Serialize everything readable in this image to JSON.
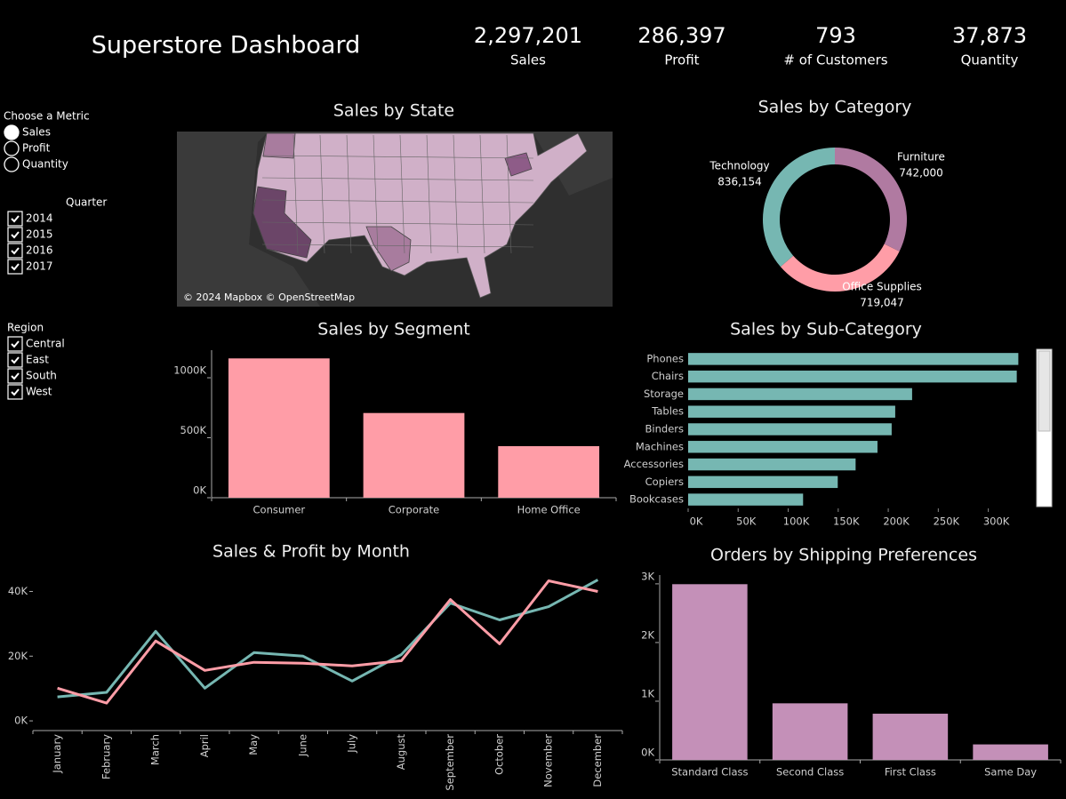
{
  "header": {
    "title": "Superstore Dashboard",
    "kpis": [
      {
        "value": "2,297,201",
        "label": "Sales"
      },
      {
        "value": "286,397",
        "label": "Profit"
      },
      {
        "value": "793",
        "label": "# of Customers"
      },
      {
        "value": "37,873",
        "label": "Quantity"
      }
    ]
  },
  "filters": {
    "metric": {
      "title": "Choose a Metric",
      "options": [
        "Sales",
        "Profit",
        "Quantity"
      ],
      "selected": "Sales"
    },
    "quarter": {
      "title": "Quarter",
      "options": [
        "2014",
        "2015",
        "2016",
        "2017"
      ]
    },
    "region": {
      "title": "Region",
      "options": [
        "Central",
        "East",
        "South",
        "West"
      ]
    }
  },
  "chart_data": [
    {
      "type": "map",
      "title": "Sales by State",
      "attribution": "© 2024 Mapbox © OpenStreetMap"
    },
    {
      "type": "pie",
      "title": "Sales by Category",
      "categories": [
        "Furniture",
        "Office Supplies",
        "Technology"
      ],
      "values": [
        742000,
        719047,
        836154
      ],
      "value_labels": [
        "742,000",
        "719,047",
        "836,154"
      ],
      "colors": [
        "#b07aa1",
        "#ff9da7",
        "#76b7b2"
      ]
    },
    {
      "type": "bar",
      "title": "Sales by Segment",
      "categories": [
        "Consumer",
        "Corporate",
        "Home Office"
      ],
      "values": [
        1161401,
        706146,
        429653
      ],
      "color": "#ff9da7",
      "ylim": [
        0,
        1230000
      ],
      "yticks": [
        {
          "value": 0,
          "label": "0K"
        },
        {
          "value": 500000,
          "label": "500K"
        },
        {
          "value": 1000000,
          "label": "1000K"
        }
      ]
    },
    {
      "type": "bar",
      "orientation": "horizontal",
      "title": "Sales by Sub-Category",
      "categories": [
        "Phones",
        "Chairs",
        "Storage",
        "Tables",
        "Binders",
        "Machines",
        "Accessories",
        "Copiers",
        "Bookcases"
      ],
      "values": [
        330007,
        328449,
        223844,
        206966,
        203413,
        189239,
        167380,
        149528,
        114880
      ],
      "color": "#76b7b2",
      "xlim": [
        0,
        343000
      ],
      "xticks": [
        {
          "value": 0,
          "label": "0K"
        },
        {
          "value": 50000,
          "label": "50K"
        },
        {
          "value": 100000,
          "label": "100K"
        },
        {
          "value": 150000,
          "label": "150K"
        },
        {
          "value": 200000,
          "label": "200K"
        },
        {
          "value": 250000,
          "label": "250K"
        },
        {
          "value": 300000,
          "label": "300K"
        }
      ]
    },
    {
      "type": "line",
      "title": "Sales & Profit by Month",
      "categories": [
        "January",
        "February",
        "March",
        "April",
        "May",
        "June",
        "July",
        "August",
        "September",
        "October",
        "November",
        "December"
      ],
      "series": [
        {
          "color": "#76b7b2",
          "values": [
            7400,
            8800,
            27700,
            10100,
            21100,
            20000,
            12300,
            20500,
            36400,
            31200,
            35300,
            43600
          ]
        },
        {
          "color": "#ff9da7",
          "values": [
            10100,
            5500,
            24700,
            15600,
            18100,
            17800,
            17000,
            18600,
            37500,
            23800,
            43300,
            40000
          ]
        }
      ],
      "ylim": [
        -3000,
        47000
      ],
      "yticks": [
        {
          "value": 0,
          "label": "0K"
        },
        {
          "value": 20000,
          "label": "20K"
        },
        {
          "value": 40000,
          "label": "40K"
        }
      ]
    },
    {
      "type": "bar",
      "title": "Orders by Shipping Preferences",
      "categories": [
        "Standard Class",
        "Second Class",
        "First Class",
        "Same Day"
      ],
      "values": [
        2994,
        964,
        787,
        264
      ],
      "color": "#c490b8",
      "ylim": [
        0,
        3150
      ],
      "yticks": [
        {
          "value": 0,
          "label": "0K"
        },
        {
          "value": 1000,
          "label": "1K"
        },
        {
          "value": 2000,
          "label": "2K"
        },
        {
          "value": 3000,
          "label": "3K"
        }
      ]
    }
  ]
}
